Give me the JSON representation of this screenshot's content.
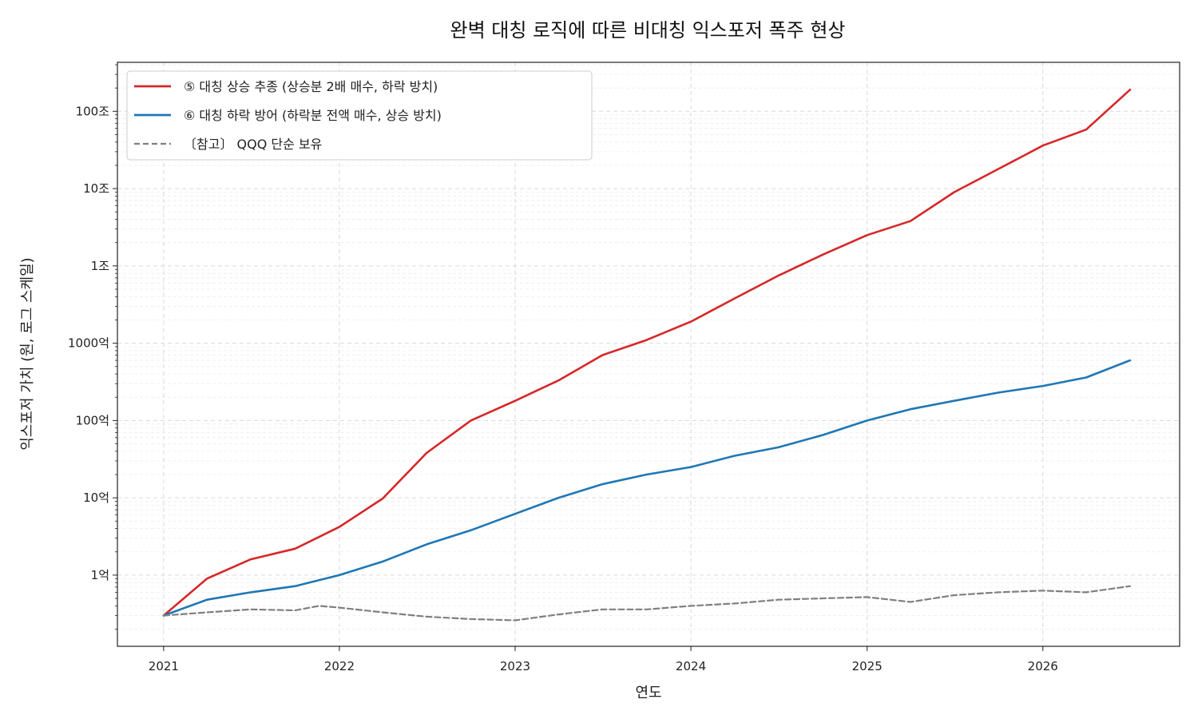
{
  "chart_data": {
    "type": "line",
    "title": "완벽 대칭 로직에 따른 비대칭 익스포저 폭주 현상",
    "xlabel": "연도",
    "ylabel": "익스포저 가치 (원, 로그 스케일)",
    "x_ticks": [
      "2021",
      "2022",
      "2023",
      "2024",
      "2025",
      "2026"
    ],
    "xlim": [
      "2020-09-27",
      "2026-10-12"
    ],
    "y_scale": "log",
    "ylim": [
      12000000,
      430000000000000
    ],
    "y_ticks": [
      {
        "value": 100000000,
        "label": "1억"
      },
      {
        "value": 1000000000,
        "label": "10억"
      },
      {
        "value": 10000000000,
        "label": "100억"
      },
      {
        "value": 100000000000,
        "label": "1000억"
      },
      {
        "value": 1000000000000,
        "label": "1조"
      },
      {
        "value": 10000000000000,
        "label": "10조"
      },
      {
        "value": 100000000000000,
        "label": "100조"
      }
    ],
    "grid": true,
    "legend_position": "top-left",
    "series": [
      {
        "name": "⑤ 대칭 상승 추종 (상승분 2배 매수, 하락 방치)",
        "color": "#d62728",
        "style": "solid",
        "points": [
          [
            "2021-01-01",
            30000000
          ],
          [
            "2021-04-01",
            90000000
          ],
          [
            "2021-07-01",
            160000000
          ],
          [
            "2021-10-01",
            220000000
          ],
          [
            "2022-01-01",
            420000000
          ],
          [
            "2022-04-01",
            980000000
          ],
          [
            "2022-07-01",
            3800000000
          ],
          [
            "2022-10-01",
            10000000000
          ],
          [
            "2023-01-01",
            18000000000
          ],
          [
            "2023-04-01",
            33000000000
          ],
          [
            "2023-07-01",
            70000000000
          ],
          [
            "2023-10-01",
            110000000000
          ],
          [
            "2024-01-01",
            190000000000
          ],
          [
            "2024-04-01",
            380000000000
          ],
          [
            "2024-07-01",
            750000000000
          ],
          [
            "2024-10-01",
            1400000000000
          ],
          [
            "2025-01-01",
            2500000000000
          ],
          [
            "2025-04-01",
            3800000000000
          ],
          [
            "2025-07-01",
            9000000000000
          ],
          [
            "2025-10-01",
            18000000000000
          ],
          [
            "2026-01-01",
            36000000000000
          ],
          [
            "2026-04-01",
            58000000000000
          ],
          [
            "2026-07-01",
            190000000000000
          ]
        ]
      },
      {
        "name": "⑥ 대칭 하락 방어 (하락분 전액 매수, 상승 방치)",
        "color": "#1f77b4",
        "style": "solid",
        "points": [
          [
            "2021-01-01",
            30000000
          ],
          [
            "2021-04-01",
            48000000
          ],
          [
            "2021-07-01",
            60000000
          ],
          [
            "2021-10-01",
            72000000
          ],
          [
            "2022-01-01",
            100000000
          ],
          [
            "2022-04-01",
            150000000
          ],
          [
            "2022-07-01",
            250000000
          ],
          [
            "2022-10-01",
            380000000
          ],
          [
            "2023-01-01",
            620000000
          ],
          [
            "2023-04-01",
            1000000000
          ],
          [
            "2023-07-01",
            1500000000
          ],
          [
            "2023-10-01",
            2000000000
          ],
          [
            "2024-01-01",
            2500000000
          ],
          [
            "2024-04-01",
            3500000000
          ],
          [
            "2024-07-01",
            4500000000
          ],
          [
            "2024-10-01",
            6500000000
          ],
          [
            "2025-01-01",
            10000000000
          ],
          [
            "2025-04-01",
            14000000000
          ],
          [
            "2025-07-01",
            18000000000
          ],
          [
            "2025-10-01",
            23000000000
          ],
          [
            "2026-01-01",
            28000000000
          ],
          [
            "2026-04-01",
            36000000000
          ],
          [
            "2026-07-01",
            60000000000
          ]
        ]
      },
      {
        "name": "〔참고〕 QQQ 단순 보유",
        "color": "#7f7f7f",
        "style": "dashed",
        "points": [
          [
            "2021-01-01",
            30000000
          ],
          [
            "2021-04-01",
            33000000
          ],
          [
            "2021-07-01",
            36000000
          ],
          [
            "2021-10-01",
            35000000
          ],
          [
            "2021-11-20",
            40000000
          ],
          [
            "2022-01-01",
            38000000
          ],
          [
            "2022-04-01",
            33000000
          ],
          [
            "2022-07-01",
            29000000
          ],
          [
            "2022-10-01",
            27000000
          ],
          [
            "2023-01-01",
            26000000
          ],
          [
            "2023-04-01",
            31000000
          ],
          [
            "2023-07-01",
            36000000
          ],
          [
            "2023-10-01",
            36000000
          ],
          [
            "2024-01-01",
            40000000
          ],
          [
            "2024-04-01",
            43000000
          ],
          [
            "2024-07-01",
            48000000
          ],
          [
            "2024-10-01",
            50000000
          ],
          [
            "2025-01-01",
            52000000
          ],
          [
            "2025-04-01",
            45000000
          ],
          [
            "2025-07-01",
            55000000
          ],
          [
            "2025-10-01",
            60000000
          ],
          [
            "2026-01-01",
            63000000
          ],
          [
            "2026-04-01",
            60000000
          ],
          [
            "2026-07-01",
            72000000
          ]
        ]
      }
    ]
  }
}
